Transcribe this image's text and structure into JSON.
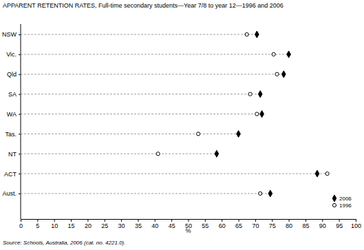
{
  "chart_data": {
    "type": "dot",
    "orientation": "horizontal",
    "title": "APPARENT RETENTION RATES, Full-time secondary students—Year 7/8 to year 12—1996 and 2006",
    "xlabel": "%",
    "annotations": [
      "Source: Schools, Australia, 2006 (cat. no. 4221.0)."
    ],
    "categories": [
      "NSW",
      "Vic.",
      "Qld",
      "SA",
      "WA",
      "Tas.",
      "NT",
      "ACT",
      "Aust."
    ],
    "series": [
      {
        "name": "2006",
        "color": "#000000",
        "marker": "diamond",
        "values": [
          70.5,
          80,
          78.5,
          71.5,
          72,
          65,
          58.5,
          88.5,
          74.5
        ]
      },
      {
        "name": "1996",
        "color": "#000000",
        "marker": "circle-open",
        "values": [
          67.5,
          75.5,
          76.5,
          68.5,
          70.5,
          53,
          41,
          91.5,
          71.5
        ]
      }
    ],
    "xlim": [
      0,
      100
    ],
    "xticks": [
      0,
      5,
      10,
      15,
      20,
      25,
      30,
      35,
      40,
      45,
      50,
      55,
      60,
      65,
      70,
      75,
      80,
      85,
      90,
      95,
      100
    ],
    "legend": "bottom-right"
  }
}
